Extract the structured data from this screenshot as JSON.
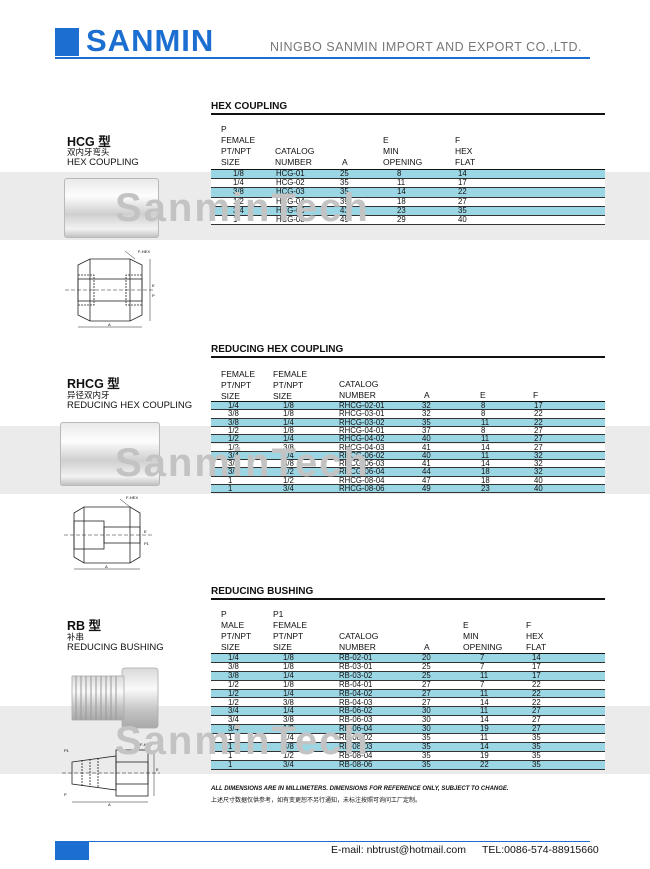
{
  "header": {
    "logo": "SANMIN",
    "company": "NINGBO SANMIN IMPORT AND EXPORT CO.,LTD."
  },
  "watermark": "SanminTech",
  "sections": [
    {
      "title": "HEX COUPLING",
      "model": "HCG 型",
      "cn": "双内牙弯头",
      "en": "HEX COUPLING",
      "headers": [
        "P\nFEMALE\nPT/NPT\nSIZE",
        "CATALOG\nNUMBER",
        "A",
        "E\nMIN\nOPENING",
        "F\nHEX\nFLAT"
      ],
      "rows": [
        [
          "1/8",
          "HCG-01",
          "25",
          "8",
          "14"
        ],
        [
          "1/4",
          "HCG-02",
          "35",
          "11",
          "17"
        ],
        [
          "3/8",
          "HCG-03",
          "35",
          "14",
          "22"
        ],
        [
          "1/2",
          "HCG-04",
          "39",
          "18",
          "27"
        ],
        [
          "3/4",
          "HCG-06",
          "43",
          "23",
          "35"
        ],
        [
          "1",
          "HCG-08",
          "49",
          "29",
          "40"
        ]
      ]
    },
    {
      "title": "REDUCING HEX  COUPLING",
      "model": "RHCG 型",
      "cn": "异径双内牙",
      "en": "REDUCING HEX COUPLING",
      "headers": [
        "FEMALE\nPT/NPT\nSIZE",
        "FEMALE\nPT/NPT\nSIZE",
        "CATALOG\nNUMBER",
        "A",
        "E",
        "F"
      ],
      "rows": [
        [
          "1/4",
          "1/8",
          "RHCG-02-01",
          "32",
          "8",
          "17"
        ],
        [
          "3/8",
          "1/8",
          "RHCG-03-01",
          "32",
          "8",
          "22"
        ],
        [
          "3/8",
          "1/4",
          "RHCG-03-02",
          "35",
          "11",
          "22"
        ],
        [
          "1/2",
          "1/8",
          "RHCG-04-01",
          "37",
          "8",
          "27"
        ],
        [
          "1/2",
          "1/4",
          "RHCG-04-02",
          "40",
          "11",
          "27"
        ],
        [
          "1/2",
          "3/8",
          "RHCG-04-03",
          "41",
          "14",
          "27"
        ],
        [
          "3/4",
          "1/4",
          "RHCG-06-02",
          "40",
          "11",
          "32"
        ],
        [
          "3/4",
          "3/8",
          "RHCG-06-03",
          "41",
          "14",
          "32"
        ],
        [
          "3/4",
          "1/2",
          "RHCG-06-04",
          "44",
          "18",
          "32"
        ],
        [
          "1",
          "1/2",
          "RHCG-08-04",
          "47",
          "18",
          "40"
        ],
        [
          "1",
          "3/4",
          "RHCG-08-06",
          "49",
          "23",
          "40"
        ]
      ]
    },
    {
      "title": "REDUCING BUSHING",
      "model": "RB 型",
      "cn": "补串",
      "en": "REDUCING BUSHING",
      "headers": [
        "P\nMALE\nPT/NPT\nSIZE",
        "P1\nFEMALE\nPT/NPT\nSIZE",
        "CATALOG\nNUMBER",
        "A",
        "E\nMIN\nOPENING",
        "F\nHEX\nFLAT"
      ],
      "rows": [
        [
          "1/4",
          "1/8",
          "RB-02-01",
          "20",
          "7",
          "14"
        ],
        [
          "3/8",
          "1/8",
          "RB-03-01",
          "25",
          "7",
          "17"
        ],
        [
          "3/8",
          "1/4",
          "RB-03-02",
          "25",
          "11",
          "17"
        ],
        [
          "1/2",
          "1/8",
          "RB-04-01",
          "27",
          "7",
          "22"
        ],
        [
          "1/2",
          "1/4",
          "RB-04-02",
          "27",
          "11",
          "22"
        ],
        [
          "1/2",
          "3/8",
          "RB-04-03",
          "27",
          "14",
          "22"
        ],
        [
          "3/4",
          "1/4",
          "RB-06-02",
          "30",
          "11",
          "27"
        ],
        [
          "3/4",
          "3/8",
          "RB-06-03",
          "30",
          "14",
          "27"
        ],
        [
          "3/4",
          "1/2",
          "RB-06-04",
          "30",
          "19",
          "27"
        ],
        [
          "1",
          "1/4",
          "RB-08-02",
          "35",
          "11",
          "35"
        ],
        [
          "1",
          "3/8",
          "RB-08-03",
          "35",
          "14",
          "35"
        ],
        [
          "1",
          "1/2",
          "RB-08-04",
          "35",
          "19",
          "35"
        ],
        [
          "1",
          "3/4",
          "RB-08-06",
          "35",
          "22",
          "35"
        ]
      ],
      "note": "ALL DIMENSIONS ARE IN MILLIMETERS. DIMENSIONS FOR REFERENCE ONLY, SUBJECT TO CHANGE.",
      "note_cn": "上述尺寸数据仅供参考，如有变更恕不另行通知，未标注按照可询问工厂定制。"
    }
  ],
  "drawing_labels": {
    "hcg": [
      "F-HEX",
      "E",
      "P",
      "A"
    ],
    "rhcg": [
      "F-HEX",
      "E",
      "P1",
      "A"
    ],
    "rb": [
      "P1",
      "F-HEX",
      "E",
      "P",
      "A"
    ]
  },
  "footer": {
    "email": "E-mail: nbtrust@hotmail.com",
    "tel": "TEL:0086-574-88915660"
  }
}
